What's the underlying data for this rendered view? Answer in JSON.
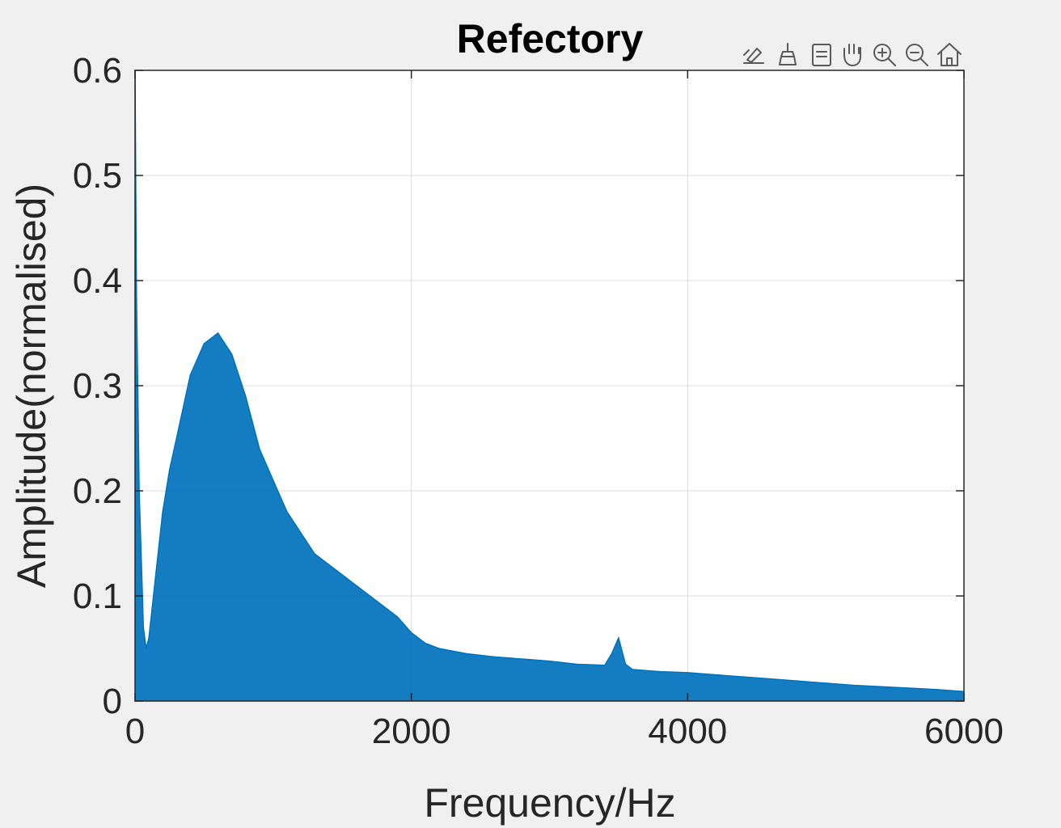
{
  "chart_data": {
    "type": "area",
    "title": "Refectory",
    "xlabel": "Frequency/Hz",
    "ylabel": "Amplitude(normalised)",
    "xlim": [
      0,
      6000
    ],
    "ylim": [
      0,
      0.6
    ],
    "x_ticks": [
      0,
      2000,
      4000,
      6000
    ],
    "y_ticks": [
      0,
      0.1,
      0.2,
      0.3,
      0.4,
      0.5,
      0.6
    ],
    "x_tick_labels": [
      "0",
      "2000",
      "4000",
      "6000"
    ],
    "y_tick_labels": [
      "0",
      "0.1",
      "0.2",
      "0.3",
      "0.4",
      "0.5",
      "0.6"
    ],
    "grid": true,
    "legend": "none",
    "series": [
      {
        "color": "#0072BD",
        "x": [
          0,
          10,
          30,
          60,
          80,
          100,
          150,
          200,
          250,
          300,
          400,
          500,
          600,
          700,
          800,
          900,
          1000,
          1100,
          1200,
          1300,
          1400,
          1500,
          1600,
          1700,
          1800,
          1900,
          2000,
          2100,
          2200,
          2400,
          2600,
          2800,
          3000,
          3200,
          3400,
          3450,
          3500,
          3550,
          3600,
          3800,
          4000,
          4200,
          4500,
          4800,
          5000,
          5200,
          5500,
          5800,
          6000
        ],
        "y": [
          0.6,
          0.39,
          0.2,
          0.07,
          0.05,
          0.06,
          0.12,
          0.18,
          0.22,
          0.25,
          0.31,
          0.34,
          0.35,
          0.33,
          0.29,
          0.24,
          0.21,
          0.18,
          0.16,
          0.14,
          0.13,
          0.12,
          0.11,
          0.1,
          0.09,
          0.08,
          0.065,
          0.055,
          0.05,
          0.045,
          0.042,
          0.04,
          0.038,
          0.035,
          0.034,
          0.045,
          0.06,
          0.035,
          0.03,
          0.028,
          0.027,
          0.025,
          0.022,
          0.019,
          0.017,
          0.015,
          0.013,
          0.011,
          0.009
        ]
      }
    ]
  },
  "toolbar": [
    {
      "icon": "edit-plot-icon"
    },
    {
      "icon": "brush-icon"
    },
    {
      "icon": "data-tips-icon"
    },
    {
      "icon": "pan-hand-icon"
    },
    {
      "icon": "zoom-in-icon"
    },
    {
      "icon": "zoom-out-icon"
    },
    {
      "icon": "home-icon"
    }
  ]
}
